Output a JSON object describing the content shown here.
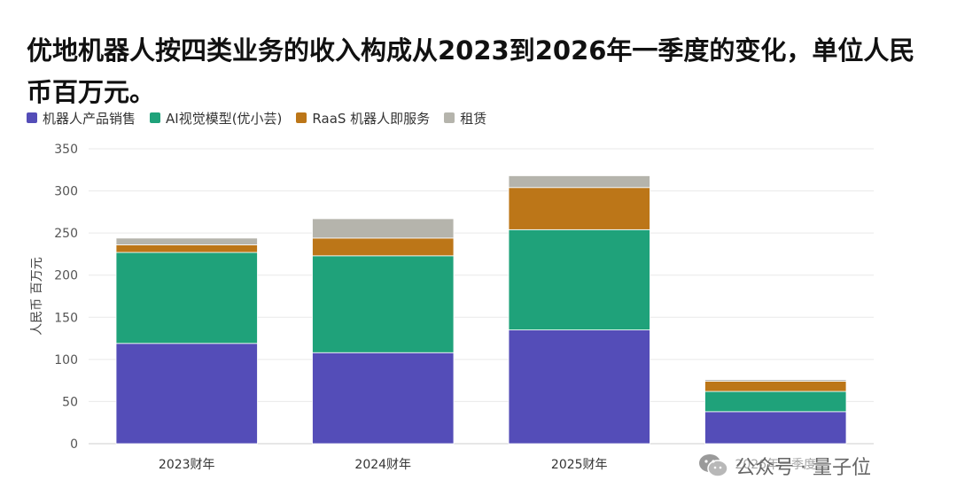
{
  "chart_data": {
    "type": "bar",
    "stacked": true,
    "title": "优地机器人按四类业务的收入构成从2023到2026年一季度的变化，单位人民币百万元。",
    "ylabel": "人民币 百万元",
    "xlabel": "",
    "categories": [
      "2023财年",
      "2024财年",
      "2025财年",
      "2026年一季度"
    ],
    "ylim": [
      0,
      350
    ],
    "yticks": [
      0,
      50,
      100,
      150,
      200,
      250,
      300,
      350
    ],
    "grid": true,
    "legend_position": "top-left",
    "series": [
      {
        "name": "机器人产品销售",
        "color": "#544DB8",
        "values": [
          119,
          108,
          135,
          38
        ]
      },
      {
        "name": "AI视觉模型(优小芸)",
        "color": "#1FA27A",
        "values": [
          108,
          115,
          119,
          24
        ]
      },
      {
        "name": "RaaS 机器人即服务",
        "color": "#BC7618",
        "values": [
          9,
          21,
          50,
          12
        ]
      },
      {
        "name": "租赁",
        "color": "#B5B4AC",
        "values": [
          8,
          23,
          14,
          2
        ]
      }
    ]
  },
  "watermark": {
    "icon": "wechat-icon",
    "text": "公众号 · 量子位"
  }
}
